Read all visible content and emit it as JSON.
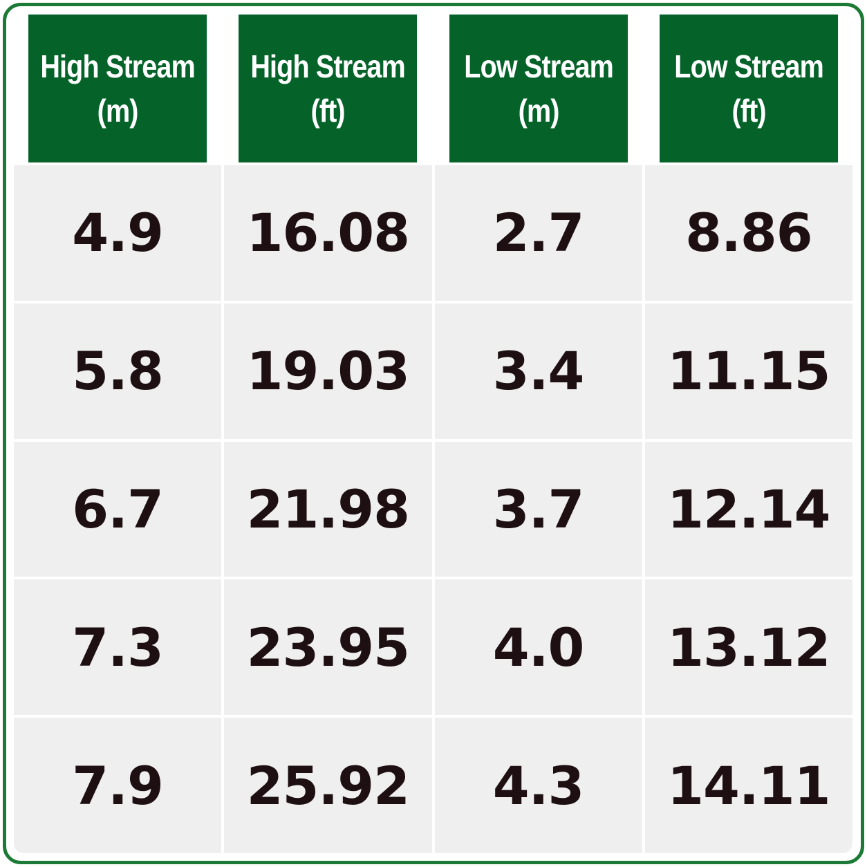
{
  "chart_data": {
    "type": "table",
    "columns": [
      {
        "line1": "High Stream",
        "line2": "(m)"
      },
      {
        "line1": "High Stream",
        "line2": "(ft)"
      },
      {
        "line1": "Low Stream",
        "line2": "(m)"
      },
      {
        "line1": "Low Stream",
        "line2": "(ft)"
      }
    ],
    "rows": [
      [
        "4.9",
        "16.08",
        "2.7",
        "8.86"
      ],
      [
        "5.8",
        "19.03",
        "3.4",
        "11.15"
      ],
      [
        "6.7",
        "21.98",
        "3.7",
        "12.14"
      ],
      [
        "7.3",
        "23.95",
        "4.0",
        "13.12"
      ],
      [
        "7.9",
        "25.92",
        "4.3",
        "14.11"
      ]
    ],
    "colors": {
      "header_bg": "#05632a",
      "header_text": "#ffffff",
      "cell_bg": "#efefef",
      "cell_text": "#1e1012",
      "border": "#1b7a35"
    }
  }
}
